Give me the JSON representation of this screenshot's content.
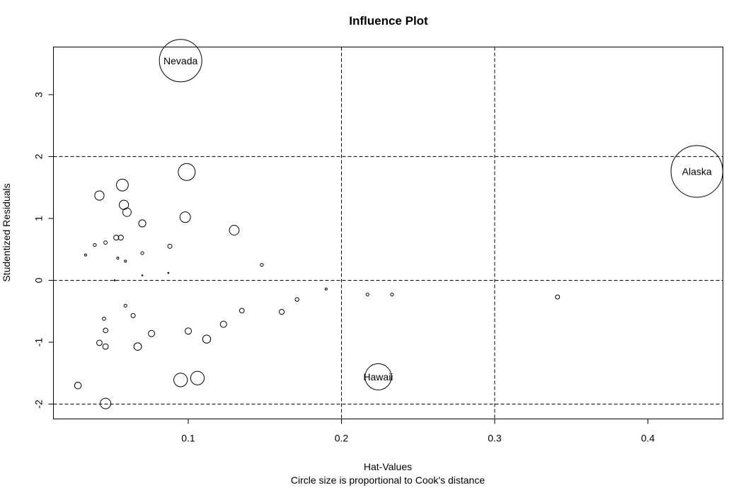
{
  "chart_data": {
    "type": "scatter",
    "title": "Influence Plot",
    "xlabel": "Hat-Values",
    "subtitle": "Circle size is proportional to Cook's distance",
    "ylabel": "Studentized Residuals",
    "xlim": [
      0.012,
      0.449
    ],
    "ylim": [
      -2.24,
      3.77
    ],
    "x_ticks": [
      0.1,
      0.2,
      0.3,
      0.4
    ],
    "x_tick_labels": [
      "0.1",
      "0.2",
      "0.3",
      "0.4"
    ],
    "y_ticks": [
      -2,
      -1,
      0,
      1,
      2,
      3
    ],
    "y_tick_labels": [
      "-2",
      "-1",
      "0",
      "1",
      "2",
      "3"
    ],
    "reference_lines": {
      "h": [
        -2,
        0,
        2
      ],
      "v": [
        0.2,
        0.3
      ]
    },
    "grid": false,
    "points": [
      {
        "x": 0.095,
        "y": 3.55,
        "size": 1.0,
        "label": "Nevada"
      },
      {
        "x": 0.432,
        "y": 1.76,
        "size": 1.22,
        "label": "Alaska"
      },
      {
        "x": 0.224,
        "y": -1.56,
        "size": 0.62,
        "label": "Hawaii"
      },
      {
        "x": 0.099,
        "y": 1.75,
        "size": 0.4
      },
      {
        "x": 0.042,
        "y": 1.37,
        "size": 0.22
      },
      {
        "x": 0.057,
        "y": 1.54,
        "size": 0.28
      },
      {
        "x": 0.058,
        "y": 1.22,
        "size": 0.22
      },
      {
        "x": 0.06,
        "y": 1.1,
        "size": 0.2
      },
      {
        "x": 0.07,
        "y": 0.92,
        "size": 0.17
      },
      {
        "x": 0.098,
        "y": 1.02,
        "size": 0.25
      },
      {
        "x": 0.13,
        "y": 0.81,
        "size": 0.23
      },
      {
        "x": 0.053,
        "y": 0.69,
        "size": 0.12
      },
      {
        "x": 0.056,
        "y": 0.69,
        "size": 0.12
      },
      {
        "x": 0.039,
        "y": 0.57,
        "size": 0.07
      },
      {
        "x": 0.046,
        "y": 0.61,
        "size": 0.08
      },
      {
        "x": 0.033,
        "y": 0.41,
        "size": 0.05
      },
      {
        "x": 0.054,
        "y": 0.36,
        "size": 0.05
      },
      {
        "x": 0.059,
        "y": 0.31,
        "size": 0.05
      },
      {
        "x": 0.07,
        "y": 0.44,
        "size": 0.07
      },
      {
        "x": 0.088,
        "y": 0.55,
        "size": 0.1
      },
      {
        "x": 0.148,
        "y": 0.25,
        "size": 0.07
      },
      {
        "x": 0.052,
        "y": 0.0,
        "size": 0.02
      },
      {
        "x": 0.07,
        "y": 0.08,
        "size": 0.02
      },
      {
        "x": 0.087,
        "y": 0.12,
        "size": 0.02
      },
      {
        "x": 0.19,
        "y": -0.14,
        "size": 0.05
      },
      {
        "x": 0.217,
        "y": -0.23,
        "size": 0.07
      },
      {
        "x": 0.233,
        "y": -0.23,
        "size": 0.07
      },
      {
        "x": 0.341,
        "y": -0.27,
        "size": 0.1
      },
      {
        "x": 0.171,
        "y": -0.31,
        "size": 0.09
      },
      {
        "x": 0.161,
        "y": -0.51,
        "size": 0.12
      },
      {
        "x": 0.135,
        "y": -0.49,
        "size": 0.11
      },
      {
        "x": 0.059,
        "y": -0.41,
        "size": 0.07
      },
      {
        "x": 0.045,
        "y": -0.62,
        "size": 0.08
      },
      {
        "x": 0.064,
        "y": -0.57,
        "size": 0.1
      },
      {
        "x": 0.046,
        "y": -0.81,
        "size": 0.11
      },
      {
        "x": 0.076,
        "y": -0.86,
        "size": 0.15
      },
      {
        "x": 0.1,
        "y": -0.82,
        "size": 0.15
      },
      {
        "x": 0.123,
        "y": -0.71,
        "size": 0.15
      },
      {
        "x": 0.042,
        "y": -1.01,
        "size": 0.13
      },
      {
        "x": 0.046,
        "y": -1.07,
        "size": 0.13
      },
      {
        "x": 0.067,
        "y": -1.07,
        "size": 0.18
      },
      {
        "x": 0.112,
        "y": -0.95,
        "size": 0.19
      },
      {
        "x": 0.095,
        "y": -1.61,
        "size": 0.32
      },
      {
        "x": 0.106,
        "y": -1.58,
        "size": 0.32
      },
      {
        "x": 0.028,
        "y": -1.7,
        "size": 0.16
      },
      {
        "x": 0.046,
        "y": -1.99,
        "size": 0.25
      }
    ]
  }
}
